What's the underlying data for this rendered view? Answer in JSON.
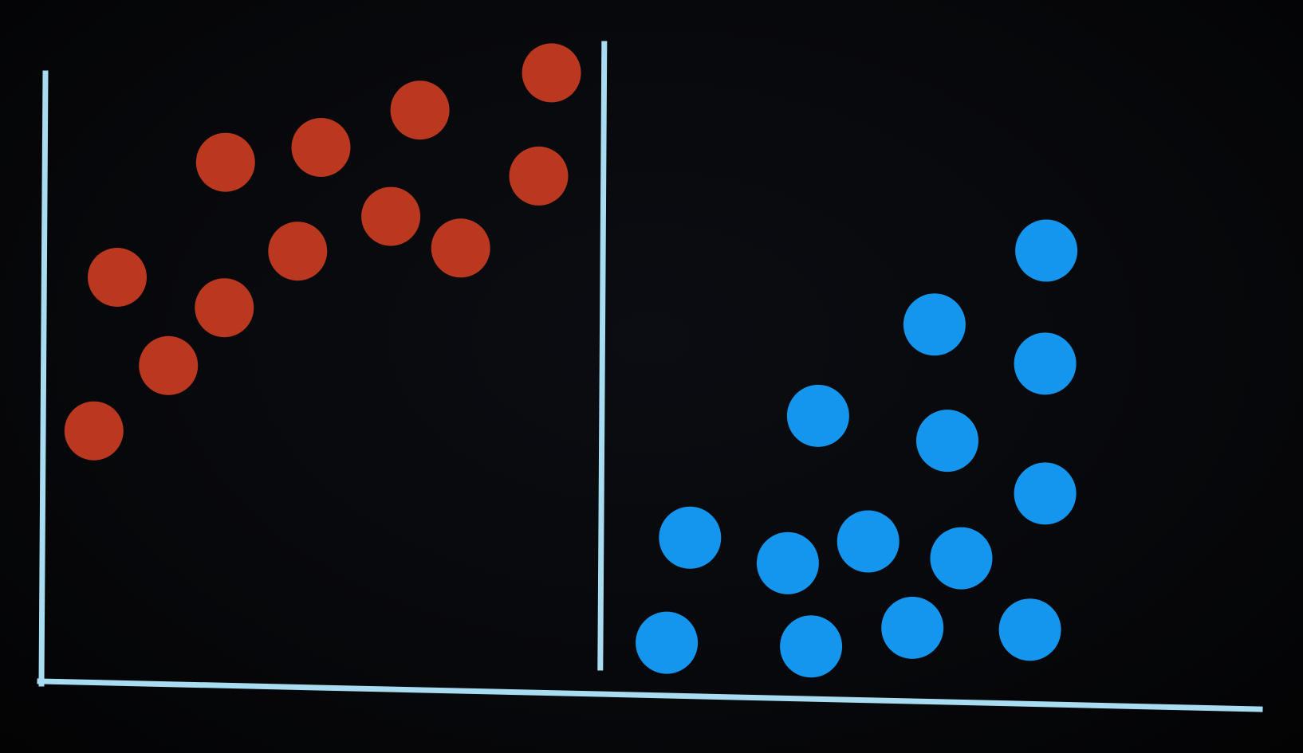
{
  "chart_data": {
    "type": "scatter",
    "title": "",
    "xlabel": "",
    "ylabel": "",
    "xlim": [
      0,
      100
    ],
    "ylim": [
      0,
      100
    ],
    "grid": false,
    "legend": "none",
    "axis_color": "#a8dcf0",
    "divider": {
      "x": 48
    },
    "series": [
      {
        "color": "#b9381f",
        "points": [
          {
            "x": 4.3,
            "y": 40.3
          },
          {
            "x": 6.3,
            "y": 65.0
          },
          {
            "x": 10.7,
            "y": 50.8
          },
          {
            "x": 15.5,
            "y": 60.1
          },
          {
            "x": 15.6,
            "y": 83.5
          },
          {
            "x": 21.8,
            "y": 69.2
          },
          {
            "x": 23.8,
            "y": 85.9
          },
          {
            "x": 29.8,
            "y": 74.8
          },
          {
            "x": 32.3,
            "y": 91.9
          },
          {
            "x": 35.8,
            "y": 69.7
          },
          {
            "x": 42.5,
            "y": 81.3
          },
          {
            "x": 43.6,
            "y": 97.9
          }
        ]
      },
      {
        "color": "#1596ee",
        "points": [
          {
            "x": 53.5,
            "y": 6.2
          },
          {
            "x": 55.5,
            "y": 23.1
          },
          {
            "x": 63.9,
            "y": 19.0
          },
          {
            "x": 65.9,
            "y": 5.6
          },
          {
            "x": 66.5,
            "y": 42.7
          },
          {
            "x": 70.8,
            "y": 22.5
          },
          {
            "x": 74.6,
            "y": 8.6
          },
          {
            "x": 76.5,
            "y": 57.4
          },
          {
            "x": 77.6,
            "y": 38.7
          },
          {
            "x": 78.8,
            "y": 19.8
          },
          {
            "x": 84.7,
            "y": 8.3
          },
          {
            "x": 86.0,
            "y": 30.2
          },
          {
            "x": 86.0,
            "y": 51.1
          },
          {
            "x": 86.1,
            "y": 69.3
          }
        ]
      }
    ]
  }
}
